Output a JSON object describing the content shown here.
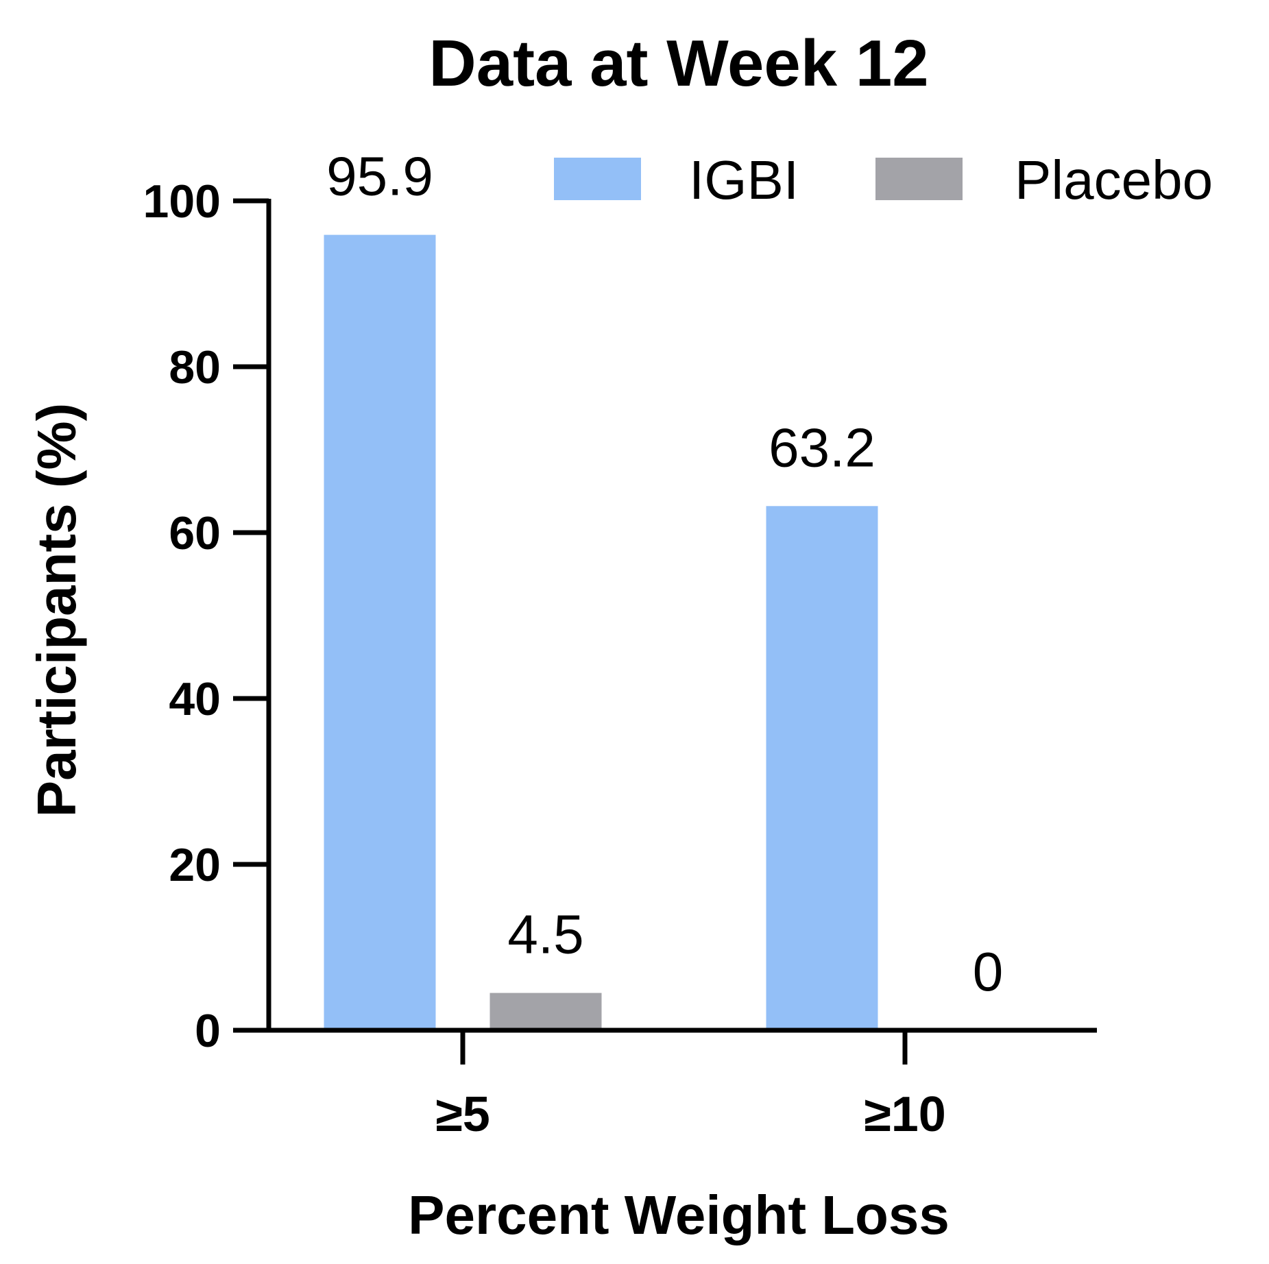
{
  "chart_data": {
    "type": "bar",
    "title": "Data at Week 12",
    "xlabel": "Percent Weight Loss",
    "ylabel": "Participants (%)",
    "ylim": [
      0,
      100
    ],
    "yticks": [
      0,
      20,
      40,
      60,
      80,
      100
    ],
    "ytick_labels": [
      "0",
      "20",
      "40",
      "60",
      "80",
      "100"
    ],
    "categories": [
      "≥5",
      "≥10"
    ],
    "series": [
      {
        "name": "IGBI",
        "color": "#93bff7",
        "values": [
          95.9,
          63.2
        ],
        "labels": [
          "95.9",
          "63.2"
        ]
      },
      {
        "name": "Placebo",
        "color": "#a3a3a8",
        "values": [
          4.5,
          0
        ],
        "labels": [
          "4.5",
          "0"
        ]
      }
    ],
    "legend": "top-right",
    "grid": false
  }
}
